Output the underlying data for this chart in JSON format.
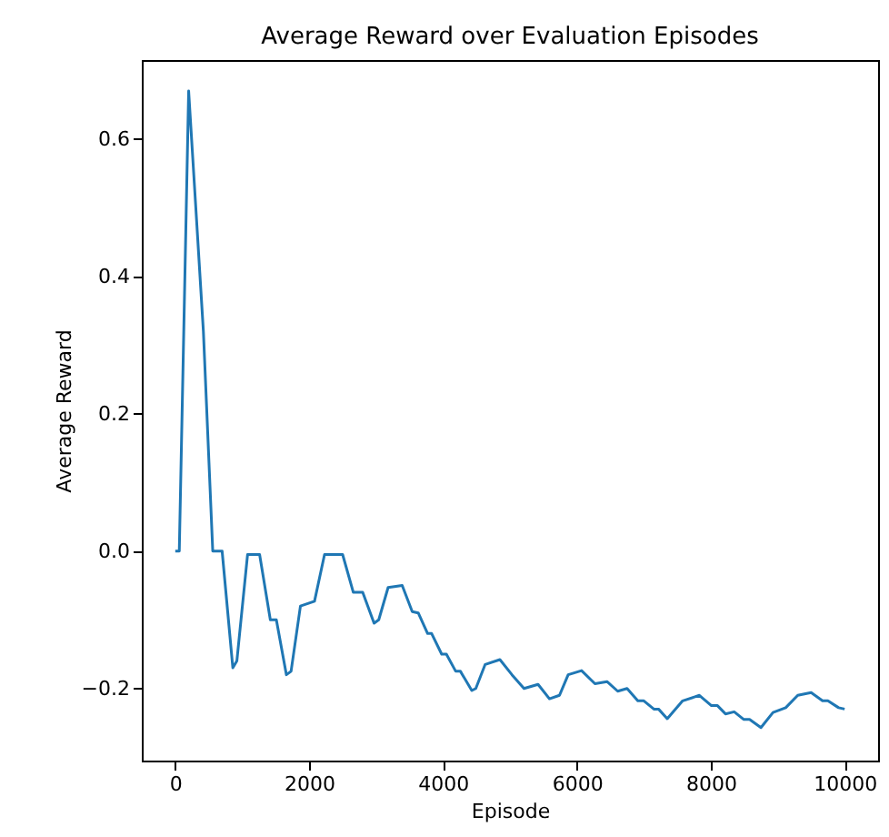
{
  "chart_data": {
    "type": "line",
    "title": "Average Reward over Evaluation Episodes",
    "xlabel": "Episode",
    "ylabel": "Average Reward",
    "x": [
      0,
      60,
      200,
      420,
      560,
      700,
      860,
      920,
      1080,
      1260,
      1420,
      1510,
      1660,
      1730,
      1870,
      2080,
      2230,
      2500,
      2660,
      2800,
      2970,
      3040,
      3180,
      3390,
      3540,
      3630,
      3770,
      3830,
      3980,
      4050,
      4190,
      4260,
      4430,
      4490,
      4630,
      4850,
      5030,
      5210,
      5420,
      5590,
      5740,
      5870,
      6070,
      6270,
      6450,
      6610,
      6750,
      6910,
      7000,
      7150,
      7220,
      7350,
      7580,
      7830,
      8010,
      8100,
      8220,
      8350,
      8490,
      8580,
      8750,
      8930,
      9120,
      9300,
      9500,
      9670,
      9750,
      9910,
      10000
    ],
    "series": [
      {
        "color": "#1f77b4",
        "values": [
          0,
          0,
          0.67,
          0.32,
          0,
          0,
          -0.17,
          -0.16,
          -0.005,
          -0.005,
          -0.1,
          -0.1,
          -0.18,
          -0.175,
          -0.08,
          -0.073,
          -0.005,
          -0.005,
          -0.06,
          -0.06,
          -0.105,
          -0.1,
          -0.053,
          -0.05,
          -0.088,
          -0.09,
          -0.12,
          -0.12,
          -0.15,
          -0.15,
          -0.175,
          -0.175,
          -0.203,
          -0.2,
          -0.165,
          -0.158,
          -0.18,
          -0.2,
          -0.194,
          -0.215,
          -0.21,
          -0.18,
          -0.174,
          -0.193,
          -0.19,
          -0.204,
          -0.2,
          -0.218,
          -0.218,
          -0.23,
          -0.23,
          -0.244,
          -0.218,
          -0.21,
          -0.225,
          -0.225,
          -0.237,
          -0.234,
          -0.245,
          -0.245,
          -0.257,
          -0.235,
          -0.228,
          -0.21,
          -0.206,
          -0.218,
          -0.218,
          -0.228,
          -0.23
        ]
      }
    ],
    "xlim": [
      -500,
      10500
    ],
    "xticks": [
      0,
      2000,
      4000,
      6000,
      8000,
      10000
    ],
    "ylim": [
      -0.305,
      0.715
    ],
    "yticks": [
      {
        "value": -0.2,
        "label": "−0.2"
      },
      {
        "value": 0,
        "label": "0.0"
      },
      {
        "value": 0.2,
        "label": "0.2"
      },
      {
        "value": 0.4,
        "label": "0.4"
      },
      {
        "value": 0.6,
        "label": "0.6"
      }
    ],
    "grid": false,
    "legend": false,
    "marker": "none",
    "line_style": "solid"
  }
}
